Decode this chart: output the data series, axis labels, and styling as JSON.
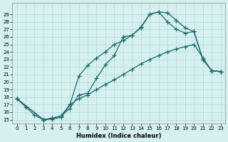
{
  "xlabel": "Humidex (Indice chaleur)",
  "ylabel": "",
  "background_color": "#d6f0f0",
  "grid_color": "#b0d8d8",
  "line_color": "#1a6b6b",
  "xlim": [
    0,
    23
  ],
  "ylim": [
    15,
    30
  ],
  "xticks": [
    0,
    1,
    2,
    3,
    4,
    5,
    6,
    7,
    8,
    9,
    10,
    11,
    12,
    13,
    14,
    15,
    16,
    17,
    18,
    19,
    20,
    21,
    22,
    23
  ],
  "yticks": [
    15,
    16,
    17,
    18,
    19,
    20,
    21,
    22,
    23,
    24,
    25,
    26,
    27,
    28,
    29
  ],
  "line1": {
    "x": [
      0,
      1,
      2,
      3,
      4,
      5,
      6,
      7,
      8,
      9,
      10,
      11,
      12,
      13,
      14,
      15,
      16,
      17,
      18,
      19,
      20,
      21,
      22,
      23
    ],
    "y": [
      17.8,
      16.7,
      15.6,
      15.0,
      15.1,
      15.3,
      17.0,
      17.8,
      18.3,
      19.0,
      19.7,
      20.3,
      21.0,
      21.7,
      22.4,
      23.0,
      23.5,
      24.0,
      24.4,
      24.7,
      25.0,
      23.2,
      21.5,
      21.4
    ]
  },
  "line2": {
    "x": [
      0,
      3,
      4,
      5,
      6,
      7,
      8,
      9,
      10,
      11,
      12,
      13,
      14,
      15,
      16,
      17,
      18,
      19,
      20,
      21,
      22,
      23
    ],
    "y": [
      17.8,
      15.0,
      15.2,
      15.5,
      17.0,
      20.8,
      22.2,
      23.2,
      24.0,
      25.0,
      25.5,
      26.2,
      27.3,
      29.0,
      29.3,
      29.2,
      28.2,
      27.2,
      26.7,
      23.0,
      21.5,
      21.4
    ]
  },
  "line3": {
    "x": [
      0,
      3,
      4,
      5,
      6,
      7,
      8,
      9,
      10,
      11,
      12,
      13,
      14,
      15,
      16,
      17,
      18,
      19,
      20,
      21,
      22,
      23
    ],
    "y": [
      17.8,
      15.0,
      15.2,
      15.5,
      16.5,
      18.3,
      18.5,
      20.5,
      22.3,
      23.5,
      26.0,
      26.2,
      27.2,
      29.0,
      29.3,
      28.0,
      27.0,
      26.5,
      26.7,
      23.0,
      21.5,
      21.4
    ]
  }
}
